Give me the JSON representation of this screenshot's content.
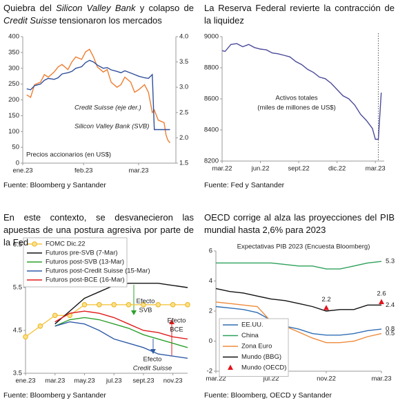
{
  "chart_data": [
    {
      "type": "line",
      "title": [
        {
          "text": "Quiebra del "
        },
        {
          "text": "Silicon Valley Bank",
          "italic": true
        },
        {
          "text": " y colapso de "
        },
        {
          "text": "Credit Suisse",
          "italic": true
        },
        {
          "text": " tensionaron los mercados"
        }
      ],
      "x": [
        2,
        4,
        6,
        9,
        11,
        13,
        16,
        18,
        20,
        23,
        25,
        27,
        30,
        32,
        34,
        36,
        38,
        41,
        43,
        45,
        48,
        50,
        52,
        55,
        57,
        59,
        62,
        64,
        66,
        67,
        68,
        69,
        72,
        73,
        74,
        75
      ],
      "xlim": [
        0,
        78
      ],
      "xticks": [
        {
          "value": 0,
          "label": "ene.23"
        },
        {
          "value": 31,
          "label": "feb.23"
        },
        {
          "value": 59,
          "label": "mar.23"
        }
      ],
      "ylim": [
        0,
        400
      ],
      "yticks": [
        0,
        50,
        100,
        150,
        200,
        250,
        300,
        350,
        400
      ],
      "y2lim": [
        1.5,
        4
      ],
      "y2ticks": [
        1.5,
        {
          "value": 2,
          "label": "2.0"
        },
        2.5,
        {
          "value": 3,
          "label": "3.0"
        },
        3.5,
        {
          "value": 4,
          "label": "4.0"
        }
      ],
      "legend": "inline",
      "series": [
        {
          "name": "Credit Suisse (eje der.)",
          "color": "#ee7d31",
          "axis": "y2",
          "values": [
            2.85,
            2.8,
            3.05,
            3.1,
            3.25,
            3.2,
            3.3,
            3.4,
            3.45,
            3.35,
            3.5,
            3.6,
            3.55,
            3.7,
            3.75,
            3.6,
            3.4,
            3.3,
            3.35,
            3.1,
            3.0,
            3.05,
            3.2,
            3.1,
            2.9,
            2.95,
            3.05,
            2.9,
            2.5,
            2.55,
            2.45,
            2.35,
            2.3,
            2.05,
            1.95,
            1.9
          ]
        },
        {
          "name": "Silicon Valley Bank (SVB)",
          "color": "#2f4f9a",
          "values": [
            235,
            232,
            245,
            250,
            262,
            268,
            265,
            270,
            282,
            286,
            290,
            300,
            305,
            318,
            325,
            320,
            310,
            300,
            302,
            295,
            290,
            286,
            292,
            285,
            280,
            275,
            270,
            268,
            280,
            106,
            106,
            106,
            106,
            106,
            106,
            106
          ]
        }
      ],
      "annotations": [
        "Precios accionarios (en US$)"
      ],
      "source": "Fuente: Bloomberg y Santander"
    },
    {
      "type": "line",
      "title": "La Reserva Federal revierte la contracción de la liquidez",
      "x": [
        0,
        1,
        3,
        5,
        7,
        9,
        11,
        13,
        15,
        17,
        19,
        21,
        23,
        25,
        27,
        29,
        31,
        33,
        35,
        37,
        39,
        41,
        43,
        45,
        47,
        49,
        51,
        52,
        53,
        54
      ],
      "xlim": [
        0,
        55
      ],
      "xticks": [
        {
          "value": 0,
          "label": "mar.22"
        },
        {
          "value": 13,
          "label": "jun.22"
        },
        {
          "value": 26,
          "label": "sept.22"
        },
        {
          "value": 39,
          "label": "dic.22"
        },
        {
          "value": 52,
          "label": "mar.23"
        }
      ],
      "ylim": [
        8200,
        9000
      ],
      "yticks": [
        8200,
        8400,
        8600,
        8800,
        9000
      ],
      "vline_x": 53,
      "series": [
        {
          "color": "#4a4a9a",
          "values": [
            8910,
            8905,
            8950,
            8955,
            8935,
            8950,
            8930,
            8920,
            8915,
            8895,
            8890,
            8880,
            8870,
            8840,
            8820,
            8790,
            8770,
            8740,
            8730,
            8700,
            8660,
            8620,
            8600,
            8560,
            8500,
            8460,
            8410,
            8340,
            8340,
            8640
          ]
        }
      ],
      "annotations": [
        "Activos totales",
        "(miles de millones de US$)"
      ],
      "source": "Fuente: Fed y Santander"
    },
    {
      "type": "line",
      "title": "En este contexto, se desvanecieron las apuestas de una postura agresiva por parte de la Fed",
      "categories": [
        "ene.23",
        null,
        "mar.23",
        null,
        "may.23",
        null,
        "jul.23",
        null,
        "sept.23",
        null,
        "nov.23",
        null
      ],
      "ylim": [
        3.5,
        6.5
      ],
      "yticks": [
        3.5,
        4.5,
        5.5,
        6.5
      ],
      "legend": "upper left",
      "series": [
        {
          "name": "FOMC Dic.22",
          "color": "#f5c542",
          "marker": "o",
          "values": [
            4.35,
            4.6,
            4.85,
            4.85,
            5.1,
            5.1,
            5.1,
            5.1,
            5.1,
            5.1,
            5.1,
            5.1
          ]
        },
        {
          "name": "Futuros pre-SVB (7-Mar)",
          "color": "#111111",
          "values": [
            null,
            null,
            4.65,
            4.95,
            5.25,
            5.4,
            5.55,
            5.6,
            5.6,
            5.6,
            5.55,
            5.5
          ]
        },
        {
          "name": "Futuros post-SVB (13-Mar)",
          "color": "#2ca02c",
          "values": [
            null,
            null,
            4.6,
            4.75,
            4.8,
            4.75,
            4.65,
            4.55,
            4.4,
            4.3,
            4.2,
            4.1
          ]
        },
        {
          "name": "Futuros post-Credit Suisse (15-Mar)",
          "color": "#2f5aa8",
          "values": [
            null,
            null,
            4.6,
            4.7,
            4.65,
            4.5,
            4.3,
            4.2,
            4.1,
            3.95,
            3.9,
            3.85
          ]
        },
        {
          "name": "Futuros post-BCE (16-Mar)",
          "color": "#e01b1b",
          "values": [
            null,
            null,
            4.7,
            4.9,
            4.95,
            4.9,
            4.8,
            4.65,
            4.5,
            4.45,
            4.35,
            4.3
          ]
        }
      ],
      "annotations": [
        {
          "lines": [
            "Efecto",
            "SVB"
          ],
          "color": "#2ca02c"
        },
        {
          "lines": [
            "Efecto",
            "BCE"
          ],
          "color": "#e01b1b"
        },
        {
          "lines": [
            "Efecto",
            "Credit Suisse"
          ],
          "color": "#2f5aa8",
          "italic": [
            false,
            true
          ]
        }
      ],
      "source": "Fuente: Bloomberg y Santander"
    },
    {
      "type": "line",
      "title": "OECD corrige al alza las proyecciones del PIB mundial hasta 2,6% para 2023",
      "subtitle": "Expectativas PIB 2023 (Encuesta Bloomberg)",
      "categories": [
        "mar.22",
        null,
        null,
        null,
        "jul.22",
        null,
        null,
        null,
        "nov.22",
        null,
        null,
        null,
        "mar.23"
      ],
      "ylim": [
        -2,
        6
      ],
      "yticks": [
        -2,
        0,
        2,
        4,
        6
      ],
      "legend": "lower left",
      "series": [
        {
          "name": "EE.UU.",
          "color": "#2e6db4",
          "label": "last",
          "values": [
            2.3,
            2.2,
            2.1,
            1.9,
            1.4,
            1.0,
            0.8,
            0.5,
            0.4,
            0.4,
            0.5,
            0.7,
            0.8
          ]
        },
        {
          "name": "China",
          "color": "#2ca05a",
          "label": "last",
          "values": [
            5.2,
            5.2,
            5.2,
            5.2,
            5.2,
            5.1,
            5.0,
            5.0,
            4.8,
            4.8,
            5.0,
            5.2,
            5.3
          ]
        },
        {
          "name": "Zona Euro",
          "color": "#ee8a3a",
          "label": "last",
          "values": [
            2.6,
            2.5,
            2.4,
            2.3,
            1.3,
            1.0,
            0.6,
            0.2,
            -0.1,
            -0.1,
            0.0,
            0.3,
            0.5
          ]
        },
        {
          "name": "Mundo (BBG)",
          "color": "#111111",
          "label": "last",
          "values": [
            3.5,
            3.3,
            3.2,
            3.0,
            2.8,
            2.7,
            2.5,
            2.3,
            2.0,
            2.1,
            2.1,
            2.4,
            2.4
          ]
        },
        {
          "name": "Mundo (OECD)",
          "color": "#e0141e",
          "marker": "^",
          "line": false,
          "label": "all",
          "values": [
            null,
            null,
            null,
            null,
            null,
            null,
            null,
            null,
            2.2,
            null,
            null,
            null,
            2.6
          ]
        }
      ],
      "source": "Fuente: Bloomberg, OECD y Santander"
    }
  ]
}
